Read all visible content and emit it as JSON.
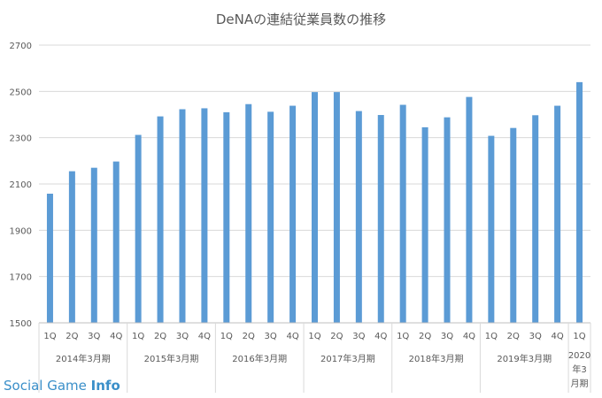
{
  "chart_data": {
    "type": "bar",
    "title": "DeNAの連結従業員数の推移",
    "ylim": [
      1500,
      2700
    ],
    "yticks": [
      1500,
      1700,
      1900,
      2100,
      2300,
      2500,
      2700
    ],
    "grid": true,
    "legend": "none",
    "bar_color": "#5b9bd5",
    "groups": [
      {
        "label": "2014年3月期",
        "categories": [
          "1Q",
          "2Q",
          "3Q",
          "4Q"
        ],
        "values": [
          2058,
          2155,
          2170,
          2197
        ]
      },
      {
        "label": "2015年3月期",
        "categories": [
          "1Q",
          "2Q",
          "3Q",
          "4Q"
        ],
        "values": [
          2312,
          2392,
          2423,
          2427
        ]
      },
      {
        "label": "2016年3月期",
        "categories": [
          "1Q",
          "2Q",
          "3Q",
          "4Q"
        ],
        "values": [
          2410,
          2445,
          2412,
          2438
        ]
      },
      {
        "label": "2017年3月期",
        "categories": [
          "1Q",
          "2Q",
          "3Q",
          "4Q"
        ],
        "values": [
          2497,
          2497,
          2415,
          2398
        ]
      },
      {
        "label": "2018年3月期",
        "categories": [
          "1Q",
          "2Q",
          "3Q",
          "4Q"
        ],
        "values": [
          2442,
          2345,
          2388,
          2476
        ]
      },
      {
        "label": "2019年3月期",
        "categories": [
          "1Q",
          "2Q",
          "3Q",
          "4Q"
        ],
        "values": [
          2308,
          2342,
          2397,
          2438
        ]
      },
      {
        "label": "2020年3月期",
        "categories": [
          "1Q"
        ],
        "values": [
          2540
        ]
      }
    ]
  },
  "watermark": {
    "part1": "Social Game ",
    "part2": "Info"
  }
}
